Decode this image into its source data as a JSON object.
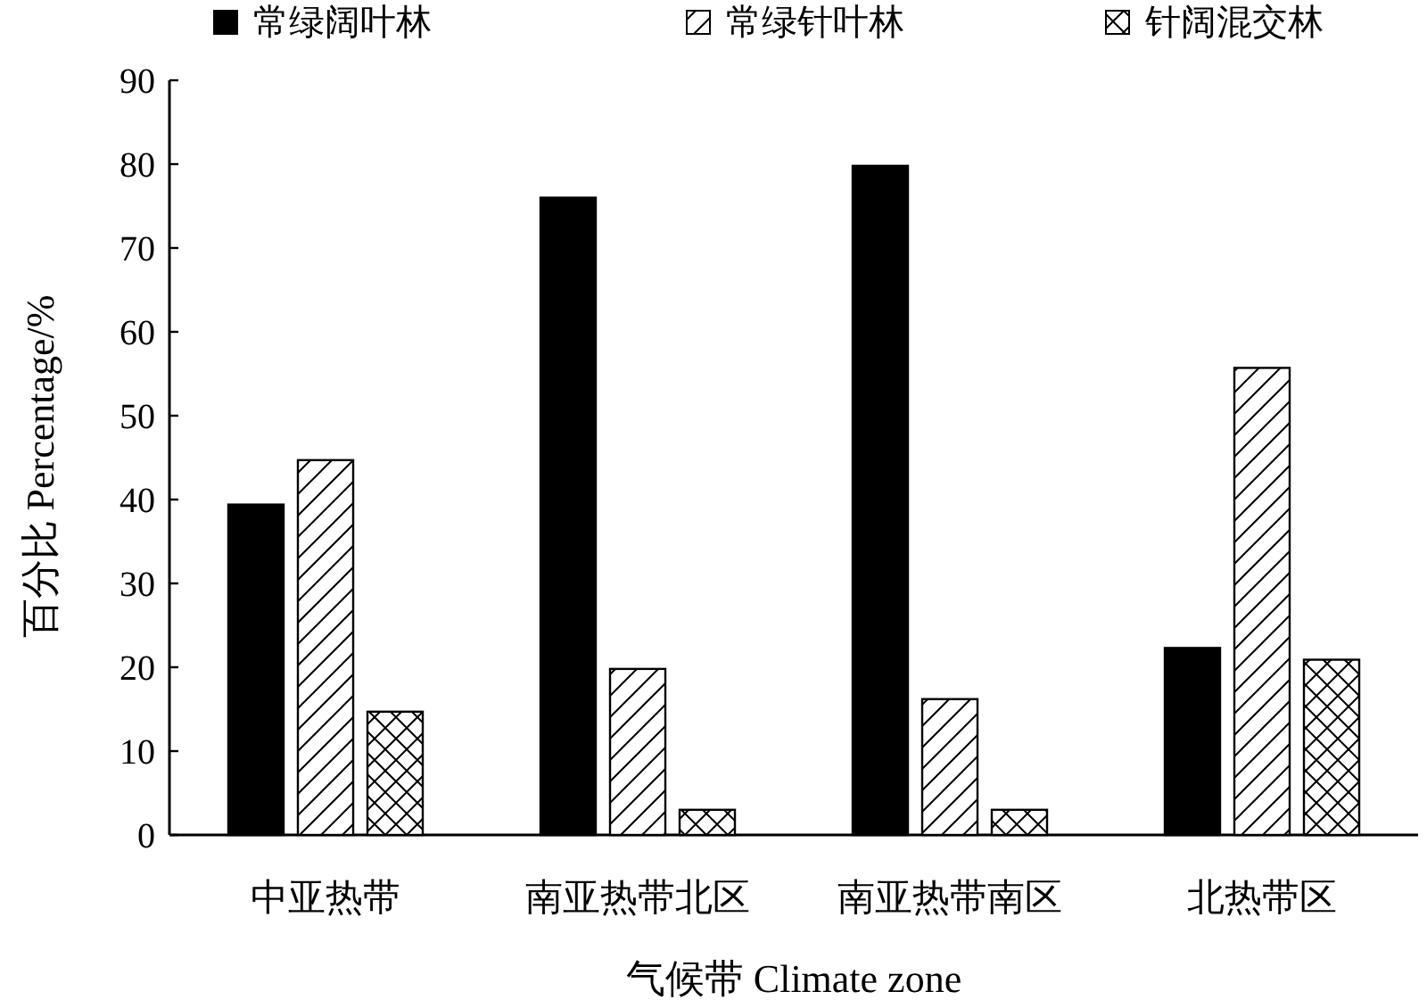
{
  "chart_data": {
    "type": "bar",
    "xlabel": "气候带 Climate zone",
    "ylabel": "百分比 Percentage/%",
    "categories": [
      "中亚热带",
      "南亚热带北区",
      "南亚热带南区",
      "北热带区"
    ],
    "series": [
      {
        "name": "常绿阔叶林",
        "color": "#000000",
        "values": [
          39.4,
          76.0,
          79.8,
          22.3
        ]
      },
      {
        "name": "常绿针叶林",
        "color": "#000000",
        "values": [
          44.7,
          19.8,
          16.2,
          55.7
        ]
      },
      {
        "name": "针阔混交林",
        "color": "#000000",
        "values": [
          14.7,
          3.0,
          3.0,
          20.9
        ]
      }
    ],
    "ylim": [
      0,
      90
    ],
    "yticks": [
      0,
      10,
      20,
      30,
      40,
      50,
      60,
      70,
      80,
      90
    ],
    "grid": false,
    "legend": "top"
  }
}
